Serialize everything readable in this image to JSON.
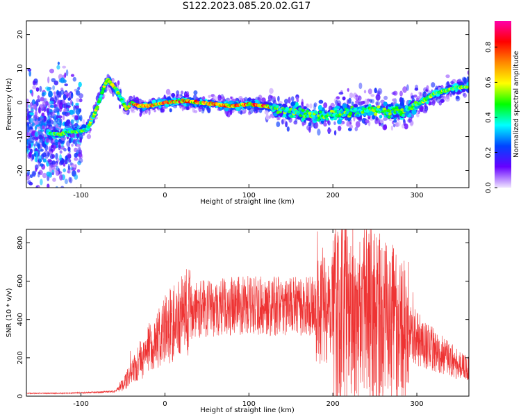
{
  "title": "S122.2023.085.20.02.G17",
  "chart_data": [
    {
      "type": "heatmap",
      "xlabel": "Height of straight line (km)",
      "ylabel": "Frequency (Hz)",
      "xlim": [
        -165,
        362
      ],
      "ylim": [
        -25,
        24
      ],
      "x_ticks": [
        -100,
        0,
        100,
        200,
        300
      ],
      "y_ticks": [
        -20,
        -10,
        0,
        10,
        20
      ],
      "colorbar": {
        "label": "Normalized spectral amplitude",
        "range": [
          0.0,
          0.95
        ],
        "ticks": [
          0.0,
          0.2,
          0.4,
          0.6,
          0.8
        ],
        "colormap": [
          "#ff00aa",
          "#ff0000",
          "#ff8800",
          "#ffff00",
          "#00ff00",
          "#00ffff",
          "#0044ff",
          "#6600ff",
          "#f0e6ff"
        ]
      },
      "ridge": {
        "x": [
          -135,
          -125,
          -115,
          -100,
          -92,
          -85,
          -80,
          -76,
          -72,
          -68,
          -64,
          -58,
          -52,
          -46,
          -40,
          -30,
          -20,
          0,
          20,
          40,
          60,
          80,
          100,
          120,
          140,
          160,
          180,
          200,
          215,
          230,
          250,
          270,
          290,
          305,
          320,
          335,
          350,
          362
        ],
        "y": [
          -9,
          -9.5,
          -8.5,
          -8.5,
          -7.5,
          -4,
          -1,
          2,
          5,
          7,
          5.5,
          4,
          1,
          -2,
          0,
          -1,
          -1,
          0,
          0.5,
          0,
          -0.5,
          -1,
          -0.5,
          -1,
          -2.5,
          -3,
          -4,
          -3.5,
          -3,
          -2.5,
          -2,
          -3,
          -2,
          0,
          2.5,
          3.5,
          4.5,
          4.5
        ]
      }
    },
    {
      "type": "line",
      "xlabel": "Height of straight line (km)",
      "ylabel": "SNR (10 * v/v)",
      "xlim": [
        -165,
        362
      ],
      "ylim": [
        0,
        870
      ],
      "x_ticks": [
        -100,
        0,
        100,
        200,
        300
      ],
      "y_ticks": [
        0,
        200,
        400,
        600,
        800
      ],
      "color": "#ee3333",
      "envelope": {
        "x": [
          -165,
          -120,
          -80,
          -60,
          -50,
          -40,
          -30,
          -20,
          -10,
          0,
          10,
          20,
          30,
          50,
          80,
          100,
          130,
          160,
          180,
          200,
          220,
          240,
          260,
          280,
          300,
          320,
          340,
          362
        ],
        "y": [
          15,
          15,
          20,
          25,
          60,
          120,
          180,
          230,
          280,
          340,
          380,
          420,
          440,
          460,
          470,
          475,
          470,
          470,
          470,
          475,
          460,
          440,
          400,
          360,
          300,
          240,
          190,
          140
        ]
      }
    }
  ]
}
